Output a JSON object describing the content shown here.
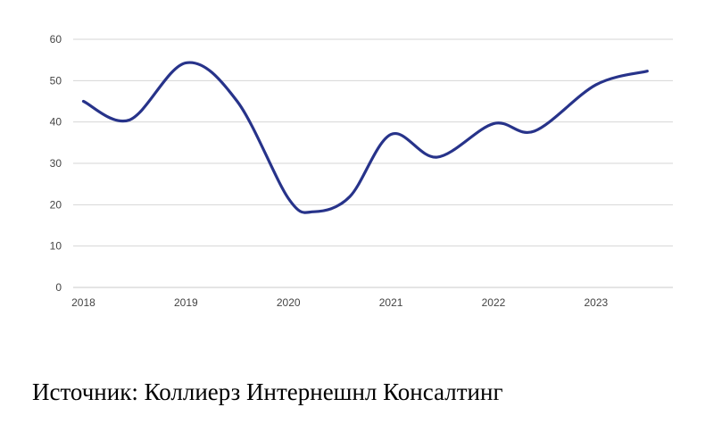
{
  "chart_data": {
    "type": "line",
    "title": "",
    "xlabel": "",
    "ylabel": "",
    "xlim": [
      2017.9,
      2023.75
    ],
    "ylim": [
      0,
      60
    ],
    "yticks": [
      0,
      10,
      20,
      30,
      40,
      50,
      60
    ],
    "xticks": [
      2018,
      2019,
      2020,
      2021,
      2022,
      2023
    ],
    "grid": true,
    "legend": "none",
    "series": [
      {
        "color": "#27338a",
        "x": [
          2018.0,
          2018.45,
          2019.0,
          2019.5,
          2020.0,
          2020.25,
          2020.6,
          2021.0,
          2021.45,
          2022.0,
          2022.4,
          2023.0,
          2023.5
        ],
        "y": [
          45,
          40.5,
          54.3,
          45,
          21.5,
          18.3,
          22,
          37,
          31.5,
          39.6,
          37.8,
          49,
          52.3
        ]
      }
    ]
  },
  "source": {
    "label": "Источник:",
    "text": "Коллиерз Интернешнл Консалтинг"
  }
}
